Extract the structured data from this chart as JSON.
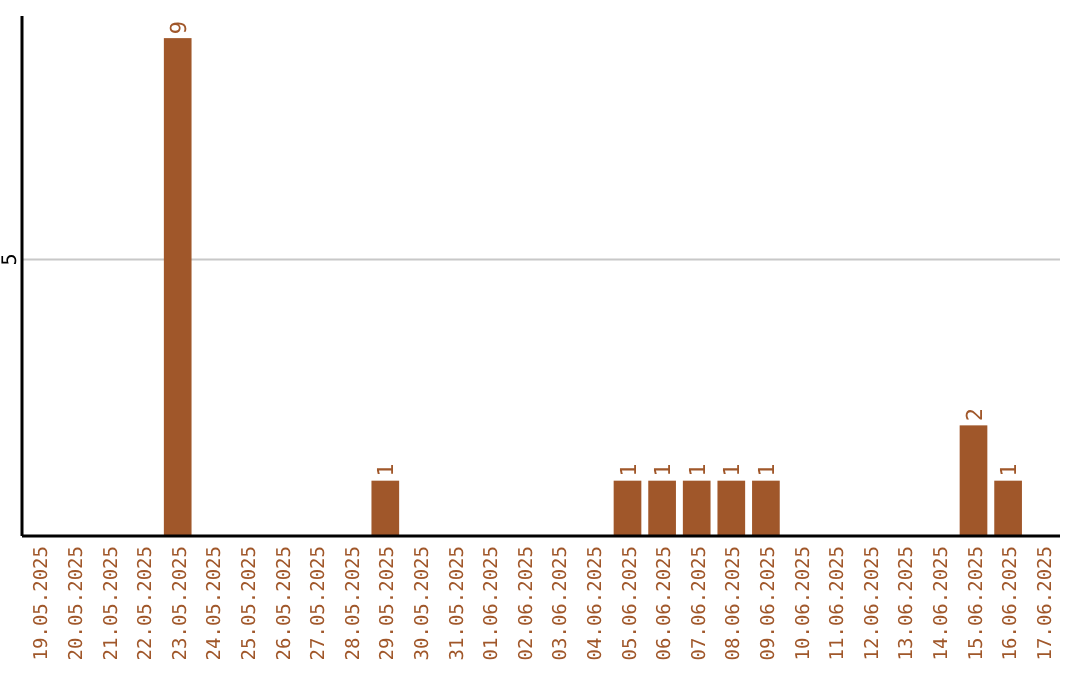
{
  "chart_data": {
    "type": "bar",
    "categories": [
      "19.05.2025",
      "20.05.2025",
      "21.05.2025",
      "22.05.2025",
      "23.05.2025",
      "24.05.2025",
      "25.05.2025",
      "26.05.2025",
      "27.05.2025",
      "28.05.2025",
      "29.05.2025",
      "30.05.2025",
      "31.05.2025",
      "01.06.2025",
      "02.06.2025",
      "03.06.2025",
      "04.06.2025",
      "05.06.2025",
      "06.06.2025",
      "07.06.2025",
      "08.06.2025",
      "09.06.2025",
      "10.06.2025",
      "11.06.2025",
      "12.06.2025",
      "13.06.2025",
      "14.06.2025",
      "15.06.2025",
      "16.06.2025",
      "17.06.2025"
    ],
    "values": [
      0,
      0,
      0,
      0,
      9,
      0,
      0,
      0,
      0,
      0,
      1,
      0,
      0,
      0,
      0,
      0,
      0,
      1,
      1,
      1,
      1,
      1,
      0,
      0,
      0,
      0,
      0,
      2,
      1,
      0
    ],
    "value_labels": [
      null,
      null,
      null,
      null,
      "9",
      null,
      null,
      null,
      null,
      null,
      "1",
      null,
      null,
      null,
      null,
      null,
      null,
      "1",
      "1",
      "1",
      "1",
      "1",
      null,
      null,
      null,
      null,
      null,
      "2",
      "1",
      null
    ],
    "color": "#a0572a",
    "ylim": [
      0,
      9.4
    ],
    "yticks": [
      5
    ],
    "grid": "y"
  }
}
